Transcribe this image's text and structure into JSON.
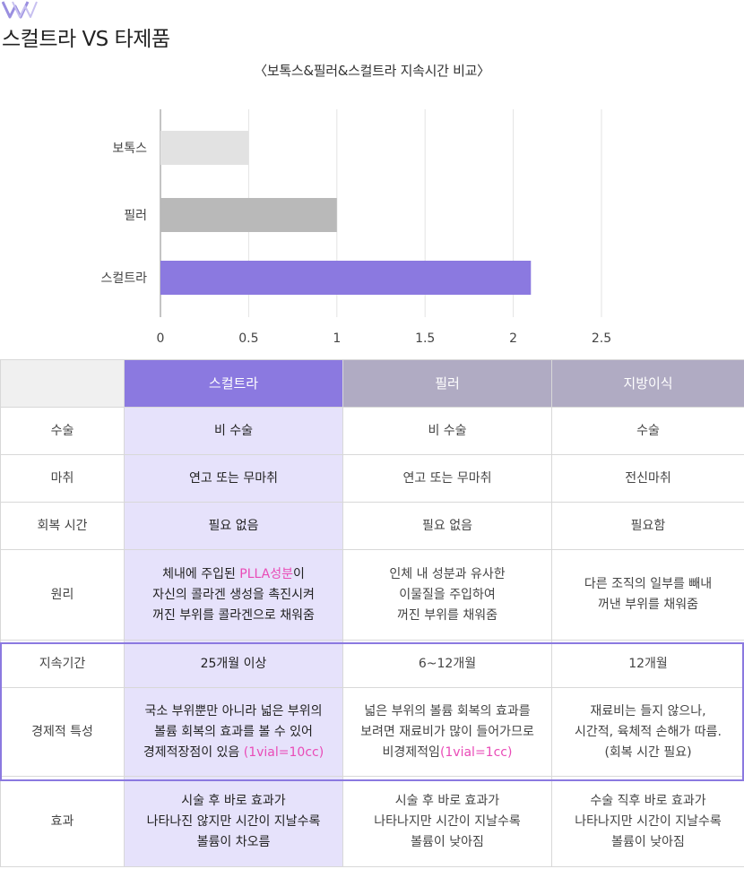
{
  "header": {
    "title": "스컬트라 VS 타제품"
  },
  "chart_data": {
    "type": "bar",
    "orientation": "horizontal",
    "title": "〈보톡스&필러&스컬트라 지속시간 비교〉",
    "categories": [
      "보톡스",
      "필러",
      "스컬트라"
    ],
    "values": [
      0.5,
      1,
      2.1
    ],
    "colors": [
      "#e2e2e2",
      "#b9b9b9",
      "#8b79e0"
    ],
    "xlim": [
      0,
      2.5
    ],
    "xticks": [
      "0",
      "0.5",
      "1",
      "1.5",
      "2",
      "2.5"
    ],
    "grid": "vertical",
    "xlabel": "",
    "ylabel": ""
  },
  "table": {
    "headers": [
      "",
      "스컬트라",
      "필러",
      "지방이식"
    ],
    "colors": {
      "accent": "#8b79e0",
      "muted_header": "#b0abc3",
      "accent_bg": "#e6e2fb",
      "pink": "#e94bb7"
    },
    "rows": [
      {
        "label": "수술",
        "cells": [
          "비 수술",
          "비 수술",
          "수술"
        ]
      },
      {
        "label": "마취",
        "cells": [
          "연고 또는 무마취",
          "연고 또는 무마취",
          "전신마취"
        ]
      },
      {
        "label": "회복 시간",
        "cells": [
          "필요 없음",
          "필요 없음",
          "필요함"
        ]
      },
      {
        "label": "원리",
        "c1": {
          "l1a": "체내에 주입된 ",
          "l1b": "PLLA성분",
          "l1c": "이",
          "l2": "자신의 콜라겐 생성을 촉진시켜",
          "l3": "꺼진 부위를 콜라겐으로 채워줌"
        },
        "c2": [
          "인체 내 성분과 유사한",
          "이물질을 주입하여",
          "꺼진 부위를 채워줌"
        ],
        "c3": [
          "다른 조직의 일부를 빼내",
          "꺼낸 부위를 채워줌"
        ]
      },
      {
        "label": "지속기간",
        "cells": [
          "25개월 이상",
          "6~12개월",
          "12개월"
        ]
      },
      {
        "label": "경제적 특성",
        "c1": {
          "l1": "국소 부위뿐만 아니라 넓은 부위의",
          "l2": "볼륨 회복의 효과를 볼 수 있어",
          "l3a": "경제적장점이 있음 ",
          "l3b": "(1vial=10cc)"
        },
        "c2": {
          "l1": "넓은 부위의 볼륨 회복의 효과를",
          "l2": "보려면 재료비가 많이 들어가므로",
          "l3a": "비경제적임",
          "l3b": "(1vial=1cc)"
        },
        "c3": [
          "재료비는 들지 않으나,",
          "시간적, 육체적 손해가 따름.",
          "(회복 시간 필요)"
        ]
      },
      {
        "label": "효과",
        "c1": [
          "시술 후 바로 효과가",
          "나타나진 않지만 시간이 지날수록",
          "볼륨이 차오름"
        ],
        "c2": [
          "시술 후 바로 효과가",
          "나타나지만 시간이 지날수록",
          "볼륨이 낮아짐"
        ],
        "c3": [
          "수술 직후 바로 효과가",
          "나타나지만 시간이 지날수록",
          "볼륨이 낮아짐"
        ]
      }
    ]
  }
}
